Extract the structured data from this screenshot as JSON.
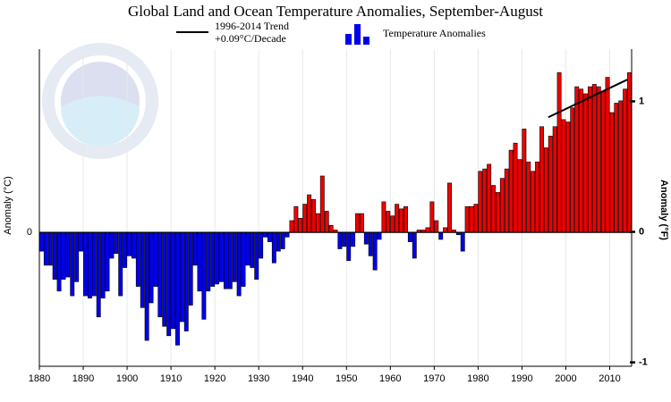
{
  "chart_data": {
    "type": "bar",
    "title": "Global Land and Ocean Temperature Anomalies, September-August",
    "ylabel": "Anomaly (°C)",
    "y2label": "Anomaly (°F)",
    "xlim": [
      1880,
      2015
    ],
    "xticks": [
      1880,
      1890,
      1900,
      1910,
      1920,
      1930,
      1940,
      1950,
      1960,
      1970,
      1980,
      1990,
      2000,
      2010
    ],
    "ylim": [
      -0.57,
      0.78
    ],
    "yticks": [
      0
    ],
    "y2lim": [
      -1.03,
      1.4
    ],
    "y2ticks": [
      -1,
      0,
      1
    ],
    "grid": true,
    "trend_note": "+0.09°C/Decade",
    "series": [
      {
        "name": "Temperature Anomalies",
        "type": "bar",
        "color": "#0000ee",
        "color_positive": "#ee0000",
        "color_negative": "#0000ee",
        "x": [
          1880,
          1881,
          1882,
          1883,
          1884,
          1885,
          1886,
          1887,
          1888,
          1889,
          1890,
          1891,
          1892,
          1893,
          1894,
          1895,
          1896,
          1897,
          1898,
          1899,
          1900,
          1901,
          1902,
          1903,
          1904,
          1905,
          1906,
          1907,
          1908,
          1909,
          1910,
          1911,
          1912,
          1913,
          1914,
          1915,
          1916,
          1917,
          1918,
          1919,
          1920,
          1921,
          1922,
          1923,
          1924,
          1925,
          1926,
          1927,
          1928,
          1929,
          1930,
          1931,
          1932,
          1933,
          1934,
          1935,
          1936,
          1937,
          1938,
          1939,
          1940,
          1941,
          1942,
          1943,
          1944,
          1945,
          1946,
          1947,
          1948,
          1949,
          1950,
          1951,
          1952,
          1953,
          1954,
          1955,
          1956,
          1957,
          1958,
          1959,
          1960,
          1961,
          1962,
          1963,
          1964,
          1965,
          1966,
          1967,
          1968,
          1969,
          1970,
          1971,
          1972,
          1973,
          1974,
          1975,
          1976,
          1977,
          1978,
          1979,
          1980,
          1981,
          1982,
          1983,
          1984,
          1985,
          1986,
          1987,
          1988,
          1989,
          1990,
          1991,
          1992,
          1993,
          1994,
          1995,
          1996,
          1997,
          1998,
          1999,
          2000,
          2001,
          2002,
          2003,
          2004,
          2005,
          2006,
          2007,
          2008,
          2009,
          2010,
          2011,
          2012,
          2013,
          2014
        ],
        "values": [
          -0.08,
          -0.14,
          -0.14,
          -0.2,
          -0.25,
          -0.2,
          -0.19,
          -0.27,
          -0.21,
          -0.08,
          -0.27,
          -0.28,
          -0.27,
          -0.36,
          -0.28,
          -0.25,
          -0.11,
          -0.09,
          -0.27,
          -0.15,
          -0.1,
          -0.11,
          -0.23,
          -0.32,
          -0.46,
          -0.3,
          -0.23,
          -0.36,
          -0.4,
          -0.44,
          -0.41,
          -0.48,
          -0.38,
          -0.42,
          -0.31,
          -0.14,
          -0.25,
          -0.37,
          -0.25,
          -0.23,
          -0.22,
          -0.21,
          -0.24,
          -0.24,
          -0.21,
          -0.27,
          -0.23,
          -0.14,
          -0.15,
          -0.2,
          -0.11,
          -0.02,
          -0.04,
          -0.13,
          -0.08,
          -0.07,
          -0.02,
          0.05,
          0.11,
          0.06,
          0.12,
          0.16,
          0.14,
          0.08,
          0.24,
          0.09,
          0.03,
          0.01,
          -0.07,
          -0.06,
          -0.12,
          -0.06,
          0.08,
          0.08,
          -0.05,
          -0.1,
          -0.16,
          -0.03,
          0.13,
          0.09,
          0.07,
          0.12,
          0.1,
          0.11,
          -0.04,
          -0.11,
          0.01,
          0.01,
          0.02,
          0.13,
          0.05,
          -0.03,
          0.02,
          0.21,
          0.01,
          -0.01,
          -0.08,
          0.11,
          0.11,
          0.12,
          0.26,
          0.27,
          0.29,
          0.2,
          0.17,
          0.23,
          0.27,
          0.35,
          0.38,
          0.31,
          0.44,
          0.3,
          0.26,
          0.3,
          0.45,
          0.36,
          0.41,
          0.45,
          0.68,
          0.48,
          0.47,
          0.53,
          0.62,
          0.61,
          0.59,
          0.62,
          0.63,
          0.62,
          0.6,
          0.66,
          0.51,
          0.55,
          0.56,
          0.61,
          0.68
        ]
      },
      {
        "name": "1996-2014 Trend",
        "type": "line",
        "color": "#000000",
        "x": [
          1996,
          2014
        ],
        "values": [
          0.49,
          0.65
        ]
      }
    ]
  }
}
